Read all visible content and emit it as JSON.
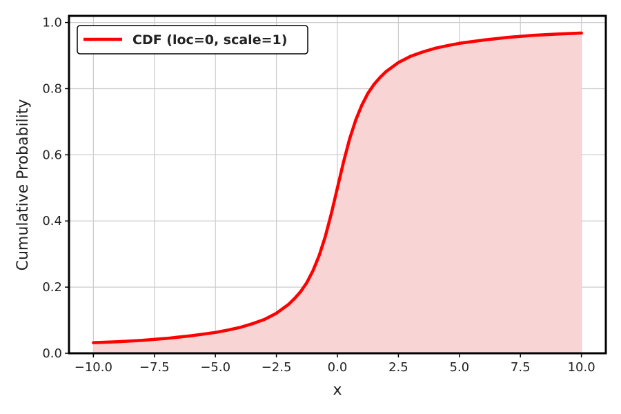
{
  "chart_data": {
    "type": "line",
    "title": "",
    "xlabel": "x",
    "ylabel": "Cumulative Probability",
    "xlim": [
      -11,
      11
    ],
    "ylim": [
      0,
      1.02
    ],
    "x_ticks": [
      -10.0,
      -7.5,
      -5.0,
      -2.5,
      0.0,
      2.5,
      5.0,
      7.5,
      10.0
    ],
    "x_tick_labels": [
      "−10.0",
      "−7.5",
      "−5.0",
      "−2.5",
      "0.0",
      "2.5",
      "5.0",
      "7.5",
      "10.0"
    ],
    "y_ticks": [
      0.0,
      0.2,
      0.4,
      0.6,
      0.8,
      1.0
    ],
    "y_tick_labels": [
      "0.0",
      "0.2",
      "0.4",
      "0.6",
      "0.8",
      "1.0"
    ],
    "grid": true,
    "legend_position": "top-left",
    "series": [
      {
        "name": "CDF (loc=0, scale=1)",
        "color": "#ff0000",
        "fill_color": "#f8d4d4",
        "fill_to_zero": true,
        "x": [
          -10.0,
          -9.0,
          -8.0,
          -7.0,
          -6.0,
          -5.0,
          -4.5,
          -4.0,
          -3.5,
          -3.0,
          -2.5,
          -2.0,
          -1.75,
          -1.5,
          -1.25,
          -1.0,
          -0.75,
          -0.5,
          -0.25,
          0.0,
          0.25,
          0.5,
          0.75,
          1.0,
          1.25,
          1.5,
          1.75,
          2.0,
          2.5,
          3.0,
          3.5,
          4.0,
          4.5,
          5.0,
          6.0,
          7.0,
          8.0,
          9.0,
          10.0
        ],
        "y": [
          0.032,
          0.035,
          0.039,
          0.045,
          0.053,
          0.063,
          0.07,
          0.078,
          0.089,
          0.102,
          0.121,
          0.148,
          0.166,
          0.187,
          0.214,
          0.25,
          0.295,
          0.352,
          0.422,
          0.5,
          0.578,
          0.648,
          0.705,
          0.75,
          0.786,
          0.813,
          0.834,
          0.852,
          0.879,
          0.898,
          0.911,
          0.922,
          0.93,
          0.937,
          0.947,
          0.955,
          0.961,
          0.965,
          0.968
        ]
      }
    ]
  }
}
